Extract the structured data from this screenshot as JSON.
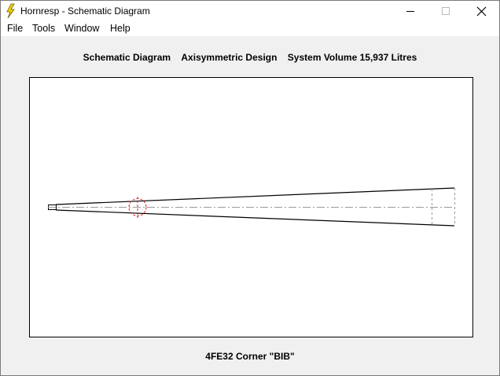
{
  "window": {
    "title": "Hornresp - Schematic Diagram"
  },
  "menu": [
    "File",
    "Tools",
    "Window",
    "Help"
  ],
  "header": [
    "Schematic Diagram",
    "Axisymmetric Design",
    "System Volume 15,937 Litres"
  ],
  "footer": "4FE32 Corner \"BIB\""
}
